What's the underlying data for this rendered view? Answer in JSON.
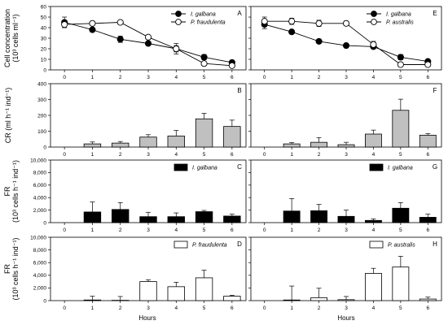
{
  "chart_data": {
    "type": "multi-panel",
    "x_ticks": [
      "0",
      "1",
      "2",
      "3",
      "4",
      "5",
      "6"
    ],
    "xlabel": "Hours",
    "rows": [
      {
        "ylabel": [
          "Cell concentration",
          "(10³ cells ml⁻¹)"
        ],
        "ylim": [
          0,
          60
        ],
        "yticks": [
          "0",
          "10",
          "20",
          "30",
          "40",
          "50",
          "60"
        ],
        "yvals": [
          0,
          10,
          20,
          30,
          40,
          50,
          60
        ],
        "type": "line"
      },
      {
        "ylabel": [
          "CR (ml h⁻¹ ind⁻¹)"
        ],
        "ylim": [
          0,
          400
        ],
        "yticks": [
          "0",
          "100",
          "200",
          "300",
          "400"
        ],
        "yvals": [
          0,
          100,
          200,
          300,
          400
        ],
        "type": "bar"
      },
      {
        "ylabel": [
          "FR",
          "(10³ cells h⁻¹ ind⁻¹)"
        ],
        "ylim": [
          0,
          10000
        ],
        "yticks": [
          "0",
          "2,000",
          "4,000",
          "6,000",
          "8,000",
          "10,000"
        ],
        "yvals": [
          0,
          2000,
          4000,
          6000,
          8000,
          10000
        ],
        "type": "bar"
      },
      {
        "ylabel": [
          "FR",
          "(10³ cells h⁻¹ ind⁻¹)"
        ],
        "ylim": [
          0,
          10000
        ],
        "yticks": [
          "0",
          "2,000",
          "4,000",
          "6,000",
          "8,000",
          "10,000"
        ],
        "yvals": [
          0,
          2000,
          4000,
          6000,
          8000,
          10000
        ],
        "type": "bar"
      }
    ],
    "panels": [
      {
        "label": "A",
        "col": 0,
        "row": 0,
        "type": "line",
        "series": [
          {
            "name": "I. galbana",
            "marker": "filled",
            "x": [
              0,
              1,
              2,
              3,
              4,
              5,
              6
            ],
            "y": [
              45,
              38,
              29,
              25,
              20,
              12,
              7
            ],
            "err": [
              5,
              1.5,
              3,
              2,
              3,
              2.5,
              2
            ]
          },
          {
            "name": "P. fraudulenta",
            "marker": "open",
            "x": [
              0,
              1,
              2,
              3,
              4,
              5,
              6
            ],
            "y": [
              43,
              44,
              45,
              31,
              20,
              6,
              4
            ],
            "err": [
              3,
              1.5,
              1,
              1.5,
              5,
              1.5,
              1
            ]
          }
        ]
      },
      {
        "label": "E",
        "col": 1,
        "row": 0,
        "type": "line",
        "series": [
          {
            "name": "I. galbana",
            "marker": "filled",
            "x": [
              0,
              1,
              2,
              3,
              4,
              5,
              6
            ],
            "y": [
              43,
              36,
              27,
              23,
              22,
              12,
              8
            ],
            "err": [
              4,
              1.5,
              2,
              1.5,
              2,
              2.5,
              1.5
            ]
          },
          {
            "name": "P. australis",
            "marker": "open",
            "x": [
              0,
              1,
              2,
              3,
              4,
              5,
              6
            ],
            "y": [
              46,
              46,
              44,
              44,
              24,
              5,
              5
            ],
            "err": [
              4,
              3,
              3,
              2,
              3,
              1,
              1
            ]
          }
        ]
      },
      {
        "label": "B",
        "col": 0,
        "row": 1,
        "type": "bar",
        "fill": "#c0c0c0",
        "values": [
          null,
          20,
          25,
          63,
          70,
          178,
          130
        ],
        "err": [
          0,
          12,
          10,
          15,
          35,
          35,
          40
        ]
      },
      {
        "label": "F",
        "col": 1,
        "row": 1,
        "type": "bar",
        "fill": "#c0c0c0",
        "values": [
          null,
          20,
          30,
          15,
          82,
          232,
          75
        ],
        "err": [
          0,
          8,
          30,
          15,
          25,
          70,
          10
        ]
      },
      {
        "label": "C",
        "col": 0,
        "row": 2,
        "type": "bar",
        "fill": "#000000",
        "legend": "I. galbana",
        "values": [
          null,
          1700,
          2100,
          950,
          950,
          1750,
          1050
        ],
        "err": [
          0,
          1600,
          1100,
          700,
          600,
          200,
          300
        ]
      },
      {
        "label": "G",
        "col": 1,
        "row": 2,
        "type": "bar",
        "fill": "#000000",
        "legend": "I. galbana",
        "values": [
          null,
          1850,
          1900,
          1000,
          350,
          2300,
          850
        ],
        "err": [
          0,
          2000,
          1000,
          1000,
          250,
          900,
          500
        ]
      },
      {
        "label": "D",
        "col": 0,
        "row": 3,
        "type": "bar",
        "fill": "#ffffff",
        "legend": "P. fraudulenta",
        "values": [
          null,
          100,
          50,
          3000,
          2200,
          3600,
          700
        ],
        "err": [
          0,
          600,
          600,
          300,
          700,
          1200,
          150
        ]
      },
      {
        "label": "H",
        "col": 1,
        "row": 3,
        "type": "bar",
        "fill": "#ffffff",
        "legend": "P. australis",
        "values": [
          null,
          100,
          450,
          150,
          4300,
          5300,
          250
        ],
        "err": [
          0,
          2200,
          1500,
          500,
          800,
          1700,
          300
        ]
      }
    ]
  }
}
